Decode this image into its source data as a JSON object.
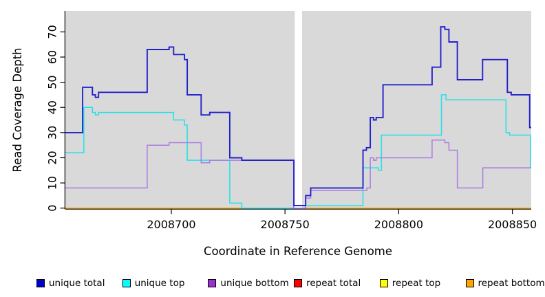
{
  "figure": {
    "background": "#ffffff",
    "plot_background": "#d9d9d9",
    "axis_color": "#000000"
  },
  "chart_data": {
    "type": "line",
    "step_mode": "after",
    "title": "",
    "xlabel": "Coordinate in Reference Genome",
    "ylabel": "Read Coverage Depth",
    "xlim": [
      2008653.4,
      2008858.3
    ],
    "ylim": [
      0,
      78.3
    ],
    "x_ticks": [
      2008700,
      2008750,
      2008800,
      2008850
    ],
    "x_tick_labels": [
      "2008700",
      "2008750",
      "2008800",
      "2008850"
    ],
    "y_ticks": [
      0,
      10,
      20,
      30,
      40,
      50,
      60,
      70
    ],
    "grid": false,
    "legend_position": "bottom",
    "gap_region": {
      "x_start": 2008754.3,
      "x_end": 2008757.5,
      "color": "#ffffff"
    },
    "series": [
      {
        "name": "repeat_total",
        "label": "repeat total",
        "color": "#ff0000",
        "points": [
          [
            2008653.4,
            0
          ]
        ]
      },
      {
        "name": "repeat_top",
        "label": "repeat top",
        "color": "#ffff00",
        "points": [
          [
            2008653.4,
            0
          ]
        ]
      },
      {
        "name": "repeat_bottom",
        "label": "repeat bottom",
        "color": "#ffa500",
        "points": [
          [
            2008653.4,
            0
          ]
        ]
      },
      {
        "name": "unique_top",
        "label": "unique top",
        "color": "#21e2e8",
        "points": [
          [
            2008653.4,
            22
          ],
          [
            2008661.5,
            40
          ],
          [
            2008665.3,
            38
          ],
          [
            2008666.6,
            37
          ],
          [
            2008668,
            38
          ],
          [
            2008701,
            35
          ],
          [
            2008705.8,
            33
          ],
          [
            2008707,
            19
          ],
          [
            2008725.7,
            2
          ],
          [
            2008731,
            0
          ],
          [
            2008759.1,
            1
          ],
          [
            2008784.3,
            16
          ],
          [
            2008791.1,
            15
          ],
          [
            2008792.4,
            29
          ],
          [
            2008818.8,
            45
          ],
          [
            2008820.8,
            43
          ],
          [
            2008847.2,
            30
          ],
          [
            2008848.8,
            29
          ],
          [
            2008857.9,
            16
          ]
        ]
      },
      {
        "name": "unique_bottom",
        "label": "unique bottom",
        "color": "#ab7ce3",
        "points": [
          [
            2008653.4,
            8
          ],
          [
            2008689.4,
            25
          ],
          [
            2008699,
            26
          ],
          [
            2008713.1,
            18
          ],
          [
            2008716.9,
            19
          ],
          [
            2008753.8,
            0
          ],
          [
            2008759.1,
            4
          ],
          [
            2008761.3,
            7
          ],
          [
            2008786,
            8
          ],
          [
            2008787.5,
            20
          ],
          [
            2008788.9,
            19
          ],
          [
            2008790.1,
            20
          ],
          [
            2008814.7,
            27
          ],
          [
            2008820.3,
            26
          ],
          [
            2008822.1,
            23
          ],
          [
            2008825.8,
            8
          ],
          [
            2008837,
            16
          ]
        ]
      },
      {
        "name": "unique_total",
        "label": "unique total",
        "color": "#2222cc",
        "points": [
          [
            2008653.4,
            30
          ],
          [
            2008661,
            48
          ],
          [
            2008665.3,
            45
          ],
          [
            2008666.6,
            44
          ],
          [
            2008668,
            46
          ],
          [
            2008689.4,
            63
          ],
          [
            2008699,
            64
          ],
          [
            2008701,
            61
          ],
          [
            2008705.8,
            59
          ],
          [
            2008707,
            45
          ],
          [
            2008713.1,
            37
          ],
          [
            2008716.9,
            38
          ],
          [
            2008725.7,
            20
          ],
          [
            2008731,
            19
          ],
          [
            2008753.9,
            1
          ],
          [
            2008759.1,
            5
          ],
          [
            2008761.3,
            8
          ],
          [
            2008784.3,
            23
          ],
          [
            2008785.8,
            24
          ],
          [
            2008787.5,
            36
          ],
          [
            2008788.9,
            35
          ],
          [
            2008790.1,
            36
          ],
          [
            2008793.1,
            49
          ],
          [
            2008814.7,
            56
          ],
          [
            2008818.5,
            72
          ],
          [
            2008820.3,
            71
          ],
          [
            2008822.1,
            66
          ],
          [
            2008825.8,
            51
          ],
          [
            2008836.9,
            59
          ],
          [
            2008847.8,
            46
          ],
          [
            2008849.5,
            45
          ],
          [
            2008857.6,
            32
          ]
        ]
      }
    ]
  },
  "legend": {
    "items": [
      {
        "label": "unique total",
        "color": "#0000cd"
      },
      {
        "label": "unique top",
        "color": "#00ffff"
      },
      {
        "label": "unique bottom",
        "color": "#9932cc"
      },
      {
        "label": "repeat total",
        "color": "#ff0000"
      },
      {
        "label": "repeat top",
        "color": "#ffff00"
      },
      {
        "label": "repeat bottom",
        "color": "#ffa500"
      }
    ]
  }
}
